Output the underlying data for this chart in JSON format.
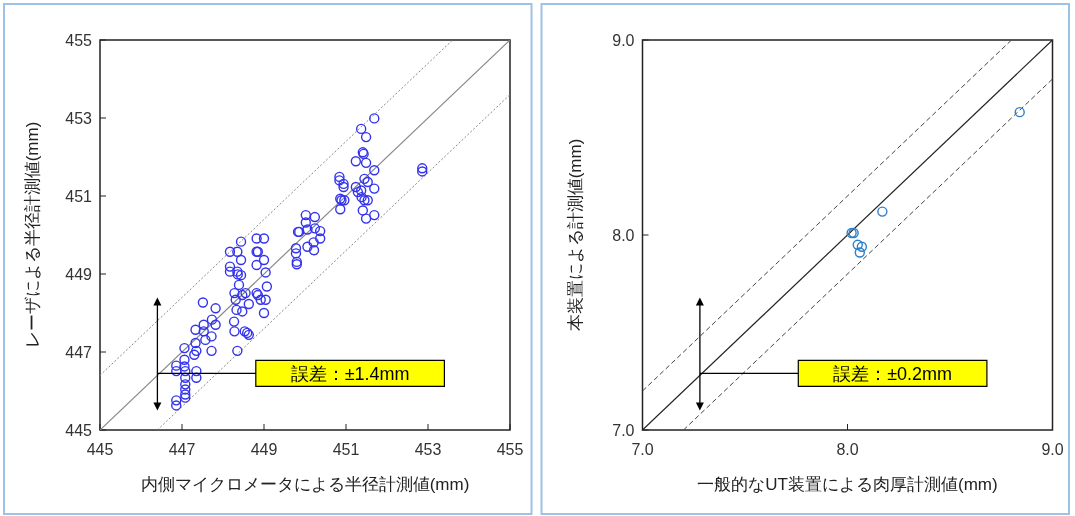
{
  "chart_data": [
    {
      "type": "scatter",
      "xlabel": "内側マイクロメータによる半径計測値(mm)",
      "ylabel": "レーザによる半径計測値(mm)",
      "xlim": [
        445,
        455
      ],
      "ylim": [
        445,
        455
      ],
      "xticks": [
        445,
        447,
        449,
        451,
        453,
        455
      ],
      "yticks": [
        445,
        447,
        449,
        451,
        453,
        455
      ],
      "annotations": [
        "誤差：±1.4mm"
      ],
      "series": [
        {
          "type": "scatter",
          "marker": "circle",
          "color": "#3333ee",
          "x": [
            446.86,
            446.86,
            446.86,
            446.86,
            447.06,
            447.06,
            447.06,
            447.08,
            447.08,
            447.08,
            447.08,
            447.08,
            447.08,
            447.35,
            447.35,
            447.3,
            447.33,
            447.33,
            447.35,
            447.53,
            447.53,
            447.51,
            447.57,
            447.73,
            447.72,
            447.72,
            447.82,
            447.82,
            448.17,
            448.17,
            448.17,
            448.27,
            448.28,
            448.35,
            448.35,
            448.35,
            448.36,
            448.39,
            448.44,
            448.44,
            448.44,
            448.28,
            448.31,
            448.33,
            448.47,
            448.47,
            448.55,
            448.53,
            448.59,
            448.63,
            448.63,
            448.82,
            448.82,
            448.82,
            448.82,
            448.85,
            448.85,
            448.92,
            449.0,
            449.0,
            449.04,
            449.07,
            449.04,
            449.0,
            449.78,
            449.78,
            449.8,
            449.8,
            449.83,
            449.86,
            450.02,
            450.02,
            450.06,
            450.06,
            450.24,
            450.24,
            450.21,
            450.22,
            450.37,
            450.37,
            450.84,
            450.84,
            450.86,
            450.86,
            450.89,
            450.94,
            450.94,
            450.96,
            451.24,
            451.24,
            451.29,
            451.37,
            451.41,
            451.43,
            451.49,
            451.49,
            451.45,
            451.37,
            451.38,
            451.41,
            451.45,
            451.49,
            451.53,
            451.53,
            451.69,
            451.69,
            451.69,
            451.69,
            452.86,
            452.86
          ],
          "values": [
            445.63,
            445.76,
            446.51,
            446.65,
            447.1,
            446.8,
            446.63,
            446.51,
            446.34,
            446.17,
            446.04,
            445.91,
            445.83,
            446.51,
            446.34,
            446.93,
            447.23,
            447.57,
            447.03,
            447.7,
            447.53,
            448.27,
            447.31,
            447.83,
            447.4,
            447.03,
            448.12,
            447.7,
            449.57,
            449.19,
            449.06,
            447.78,
            447.53,
            447.03,
            449.57,
            449.06,
            448.99,
            448.72,
            449.83,
            449.36,
            448.97,
            448.51,
            448.34,
            448.08,
            448.04,
            448.46,
            448.51,
            447.53,
            447.49,
            447.44,
            448.23,
            449.91,
            449.57,
            449.23,
            448.51,
            449.57,
            448.46,
            448.34,
            449.91,
            449.36,
            449.04,
            448.68,
            448.34,
            448.0,
            449.66,
            449.53,
            449.31,
            449.25,
            450.08,
            450.08,
            450.51,
            450.32,
            450.14,
            449.7,
            450.46,
            450.17,
            449.81,
            449.61,
            450.1,
            449.91,
            451.49,
            451.4,
            450.93,
            450.66,
            450.89,
            451.31,
            451.23,
            450.89,
            451.89,
            451.23,
            451.1,
            452.72,
            452.12,
            452.08,
            452.51,
            451.85,
            451.44,
            451.14,
            450.97,
            450.63,
            450.89,
            450.42,
            451.36,
            450.89,
            452.99,
            451.66,
            451.19,
            450.51,
            451.71,
            451.63
          ]
        },
        {
          "type": "line",
          "color": "#888888",
          "line_style": "solid",
          "x": [
            445,
            455
          ],
          "values": [
            445,
            455
          ]
        },
        {
          "type": "line",
          "color": "#888888",
          "line_style": "dotted",
          "x": [
            445,
            453.6
          ],
          "values": [
            446.4,
            455
          ]
        },
        {
          "type": "line",
          "color": "#888888",
          "line_style": "dotted",
          "x": [
            446.4,
            455
          ],
          "values": [
            445,
            453.6
          ]
        }
      ]
    },
    {
      "type": "scatter",
      "xlabel": "一般的なUT装置による肉厚計測値(mm)",
      "ylabel": "本装置による計測値(mm)",
      "xlim": [
        7,
        9
      ],
      "ylim": [
        7,
        9
      ],
      "xticks": [
        {
          "value": 7,
          "label": "7.0"
        },
        {
          "value": 8,
          "label": "8.0"
        },
        {
          "value": 9,
          "label": "9.0"
        }
      ],
      "yticks": [
        {
          "value": 7,
          "label": "7.0"
        },
        {
          "value": 8,
          "label": "8.0"
        },
        {
          "value": 9,
          "label": "9.0"
        }
      ],
      "annotations": [
        "誤差：±0.2mm"
      ],
      "series": [
        {
          "type": "scatter",
          "marker": "circle",
          "color": "#2e7fc9",
          "x": [
            8.84,
            8.17,
            8.02,
            8.03,
            8.05,
            8.07,
            8.06
          ],
          "values": [
            8.63,
            8.12,
            8.01,
            8.01,
            7.95,
            7.94,
            7.91
          ]
        },
        {
          "type": "line",
          "color": "#222222",
          "line_style": "solid",
          "x": [
            7,
            9
          ],
          "values": [
            7,
            9
          ]
        },
        {
          "type": "line",
          "color": "#444444",
          "line_style": "dashed",
          "x": [
            7,
            8.8
          ],
          "values": [
            7.2,
            9
          ]
        },
        {
          "type": "line",
          "color": "#444444",
          "line_style": "dashed",
          "x": [
            7.2,
            9
          ],
          "values": [
            7,
            8.8
          ]
        }
      ]
    }
  ]
}
